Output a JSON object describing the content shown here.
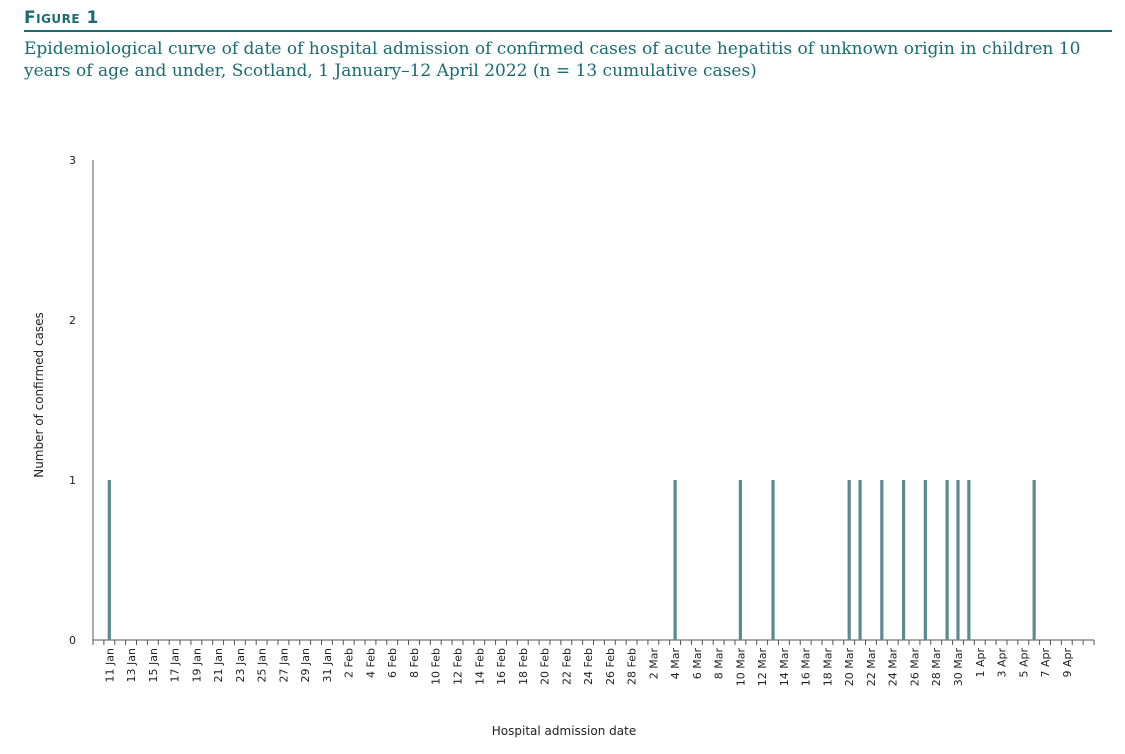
{
  "figure": {
    "label": "Figure 1",
    "caption": "Epidemiological curve of date of hospital admission of confirmed cases of acute hepatitis of unknown origin in children 10 years of age and under, Scotland, 1 January–12 April 2022 (n = 13 cumulative cases)"
  },
  "colors": {
    "accent": "#1a6b72",
    "bar": "#5b8a90",
    "axis": "#555555"
  },
  "chart_data": {
    "type": "bar",
    "xlabel": "Hospital admission date",
    "ylabel": "Number of confirmed cases",
    "ylim": [
      0,
      3
    ],
    "yticks": [
      0,
      1,
      2,
      3
    ],
    "x_start": "2022-01-10",
    "x_end": "2022-04-10",
    "x_tick_labels": [
      "11 Jan",
      "13 Jan",
      "15 Jan",
      "17 Jan",
      "19 Jan",
      "21 Jan",
      "23 Jan",
      "25 Jan",
      "27 Jan",
      "29 Jan",
      "31 Jan",
      "2 Feb",
      "4 Feb",
      "6 Feb",
      "8 Feb",
      "10 Feb",
      "12 Feb",
      "14 Feb",
      "16 Feb",
      "18 Feb",
      "20 Feb",
      "22 Feb",
      "24 Feb",
      "26 Feb",
      "28 Feb",
      "2 Mar",
      "4 Mar",
      "6 Mar",
      "8 Mar",
      "10 Mar",
      "12 Mar",
      "14 Mar",
      "16 Mar",
      "18 Mar",
      "20 Mar",
      "22 Mar",
      "24 Mar",
      "26 Mar",
      "28 Mar",
      "30 Mar",
      "1 Apr",
      "3 Apr",
      "5 Apr",
      "7 Apr",
      "9 Apr"
    ],
    "x_tick_dates": [
      "2022-01-11",
      "2022-01-13",
      "2022-01-15",
      "2022-01-17",
      "2022-01-19",
      "2022-01-21",
      "2022-01-23",
      "2022-01-25",
      "2022-01-27",
      "2022-01-29",
      "2022-01-31",
      "2022-02-02",
      "2022-02-04",
      "2022-02-06",
      "2022-02-08",
      "2022-02-10",
      "2022-02-12",
      "2022-02-14",
      "2022-02-16",
      "2022-02-18",
      "2022-02-20",
      "2022-02-22",
      "2022-02-24",
      "2022-02-26",
      "2022-02-28",
      "2022-03-02",
      "2022-03-04",
      "2022-03-06",
      "2022-03-08",
      "2022-03-10",
      "2022-03-12",
      "2022-03-14",
      "2022-03-16",
      "2022-03-18",
      "2022-03-20",
      "2022-03-22",
      "2022-03-24",
      "2022-03-26",
      "2022-03-28",
      "2022-03-30",
      "2022-04-01",
      "2022-04-03",
      "2022-04-05",
      "2022-04-07",
      "2022-04-09"
    ],
    "bars": [
      {
        "date": "2022-01-11",
        "value": 1
      },
      {
        "date": "2022-03-04",
        "value": 1
      },
      {
        "date": "2022-03-10",
        "value": 1
      },
      {
        "date": "2022-03-13",
        "value": 1
      },
      {
        "date": "2022-03-20",
        "value": 1
      },
      {
        "date": "2022-03-21",
        "value": 1
      },
      {
        "date": "2022-03-23",
        "value": 1
      },
      {
        "date": "2022-03-25",
        "value": 1
      },
      {
        "date": "2022-03-27",
        "value": 1
      },
      {
        "date": "2022-03-29",
        "value": 1
      },
      {
        "date": "2022-03-30",
        "value": 1
      },
      {
        "date": "2022-03-31",
        "value": 1
      },
      {
        "date": "2022-04-06",
        "value": 1
      }
    ],
    "grid": false,
    "legend": "none"
  }
}
